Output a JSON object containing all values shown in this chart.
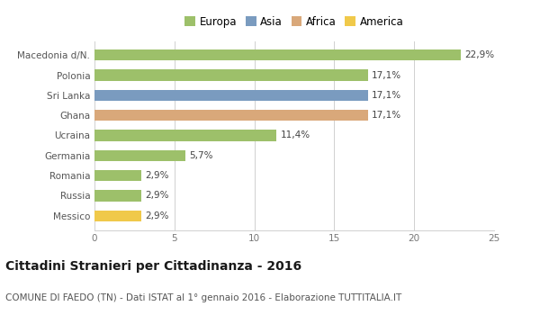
{
  "categories": [
    "Macedonia d/N.",
    "Polonia",
    "Sri Lanka",
    "Ghana",
    "Ucraina",
    "Germania",
    "Romania",
    "Russia",
    "Messico"
  ],
  "values": [
    22.9,
    17.1,
    17.1,
    17.1,
    11.4,
    5.7,
    2.9,
    2.9,
    2.9
  ],
  "labels": [
    "22,9%",
    "17,1%",
    "17,1%",
    "17,1%",
    "11,4%",
    "5,7%",
    "2,9%",
    "2,9%",
    "2,9%"
  ],
  "bar_colors": [
    "#9dc06a",
    "#9dc06a",
    "#7a9bbf",
    "#d9a87a",
    "#9dc06a",
    "#9dc06a",
    "#9dc06a",
    "#9dc06a",
    "#f0c94a"
  ],
  "legend_labels": [
    "Europa",
    "Asia",
    "Africa",
    "America"
  ],
  "legend_colors": [
    "#9dc06a",
    "#7a9bbf",
    "#d9a87a",
    "#f0c94a"
  ],
  "xlim": [
    0,
    25
  ],
  "xticks": [
    0,
    5,
    10,
    15,
    20,
    25
  ],
  "title": "Cittadini Stranieri per Cittadinanza - 2016",
  "subtitle": "COMUNE DI FAEDO (TN) - Dati ISTAT al 1° gennaio 2016 - Elaborazione TUTTITALIA.IT",
  "background_color": "#ffffff",
  "grid_color": "#d0d0d0",
  "title_fontsize": 10,
  "subtitle_fontsize": 7.5,
  "label_fontsize": 7.5,
  "tick_fontsize": 7.5,
  "legend_fontsize": 8.5
}
